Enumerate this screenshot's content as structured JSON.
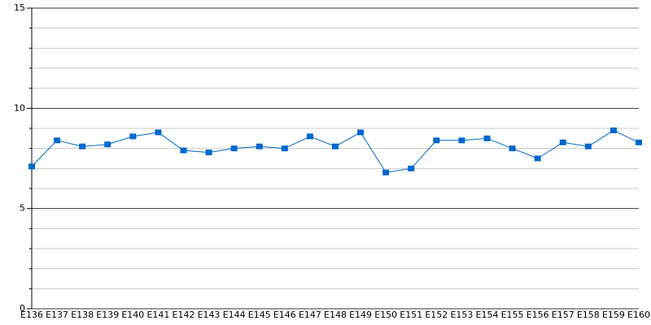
{
  "chart_data": {
    "type": "line",
    "categories": [
      "E136",
      "E137",
      "E138",
      "E139",
      "E140",
      "E141",
      "E142",
      "E143",
      "E144",
      "E145",
      "E146",
      "E147",
      "E148",
      "E149",
      "E150",
      "E151",
      "E152",
      "E153",
      "E154",
      "E155",
      "E156",
      "E157",
      "E158",
      "E159",
      "E160"
    ],
    "series": [
      {
        "color": "#0066cc",
        "values": [
          7.1,
          8.4,
          8.1,
          8.2,
          8.6,
          8.8,
          7.9,
          7.8,
          8.0,
          8.1,
          8.0,
          8.6,
          8.1,
          8.8,
          6.8,
          7.0,
          8.4,
          8.4,
          8.5,
          8.0,
          7.5,
          8.3,
          8.1,
          8.9,
          8.3
        ]
      }
    ],
    "ylim": [
      0,
      15
    ],
    "yticks": [
      0,
      5,
      10,
      15
    ],
    "minor_yticks": [
      1,
      2,
      3,
      4,
      6,
      7,
      8,
      9,
      11,
      12,
      13,
      14
    ],
    "grid": true
  }
}
